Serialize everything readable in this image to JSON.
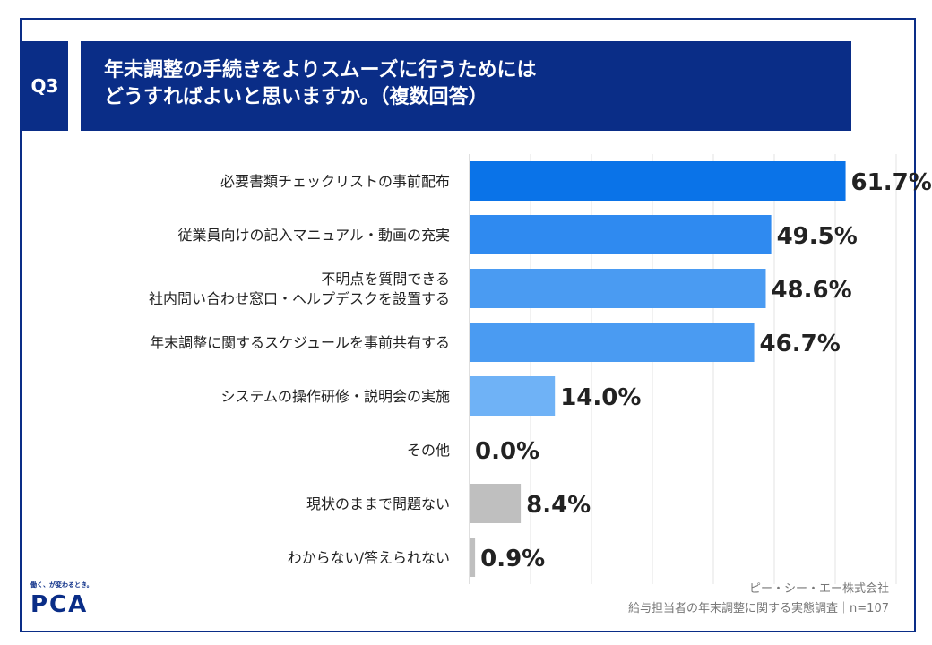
{
  "question": {
    "number": "Q3",
    "title_line1": "年末調整の手続きをよりスムーズに行うためには",
    "title_line2": "どうすればよいと思いますか。（複数回答）"
  },
  "chart_data": {
    "type": "bar",
    "orientation": "horizontal",
    "categories": [
      "必要書類チェックリストの事前配布",
      "従業員向けの記入マニュアル・動画の充実",
      "不明点を質問できる\n社内問い合わせ窓口・ヘルプデスクを設置する",
      "年末調整に関するスケジュールを事前共有する",
      "システムの操作研修・説明会の実施",
      "その他",
      "現状のままで問題ない",
      "わからない/答えられない"
    ],
    "values": [
      61.7,
      49.5,
      48.6,
      46.7,
      14.0,
      0.0,
      8.4,
      0.9
    ],
    "value_labels": [
      "61.7%",
      "49.5%",
      "48.6%",
      "46.7%",
      "14.0%",
      "0.0%",
      "8.4%",
      "0.9%"
    ],
    "bar_colors": [
      "#0a73e8",
      "#2f8af0",
      "#4a9bf2",
      "#4a9bf2",
      "#6fb2f6",
      "#6fb2f6",
      "#bfbfbf",
      "#bfbfbf"
    ],
    "xlim": [
      0,
      70
    ],
    "grid": true,
    "unit": "%"
  },
  "footer": {
    "company": "ピー・シー・エー株式会社",
    "source": "給与担当者の年末調整に関する実態調査｜n=107"
  },
  "logo": {
    "tagline": "働く、が変わるとき。",
    "mark": "PCA"
  }
}
